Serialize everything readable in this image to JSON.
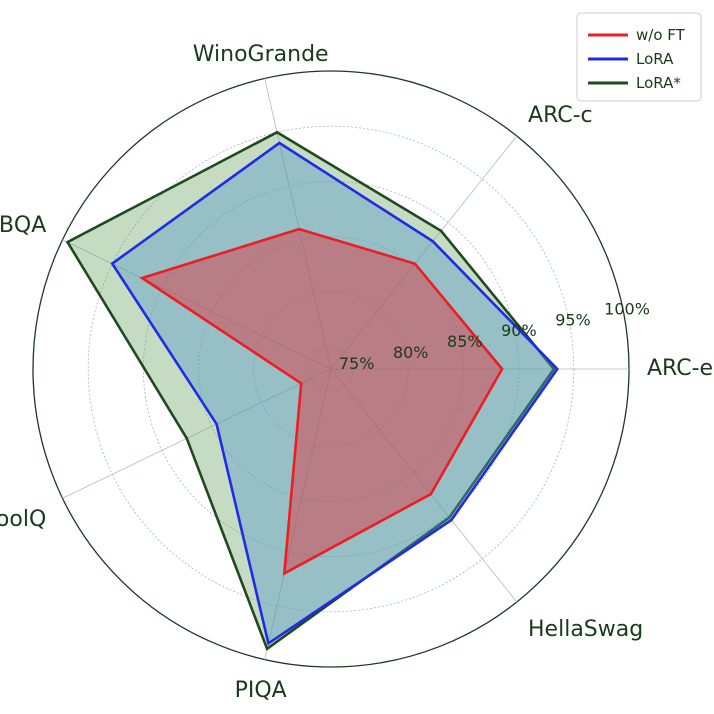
{
  "chart_data": {
    "type": "radar",
    "axes": [
      "ARC-e",
      "ARC-c",
      "WinoGrande",
      "OBQA",
      "BoolQ",
      "PIQA",
      "HellaSwag"
    ],
    "rlim": [
      73,
      100
    ],
    "ticks": [
      75,
      80,
      85,
      90,
      95,
      100
    ],
    "tick_labels": [
      "75%",
      "80%",
      "85%",
      "90%",
      "95%",
      "100%"
    ],
    "grid": true,
    "legend_position": "top-right",
    "series": [
      {
        "name": "w/o FT",
        "color": "#ee1c25",
        "fill": "#ee1c25",
        "values": [
          88.5,
          85.2,
          86.0,
          92.0,
          76.0,
          92.0,
          87.5
        ]
      },
      {
        "name": "LoRA",
        "color": "#1f2be6",
        "fill": "#4f97c8",
        "values": [
          93.5,
          87.8,
          94.0,
          95.0,
          84.5,
          98.5,
          90.5
        ]
      },
      {
        "name": "LoRA*",
        "color": "#1f4a1f",
        "fill": "#6fa86a",
        "values": [
          93.2,
          89.0,
          95.0,
          99.5,
          87.5,
          99.0,
          90.2
        ]
      }
    ]
  }
}
